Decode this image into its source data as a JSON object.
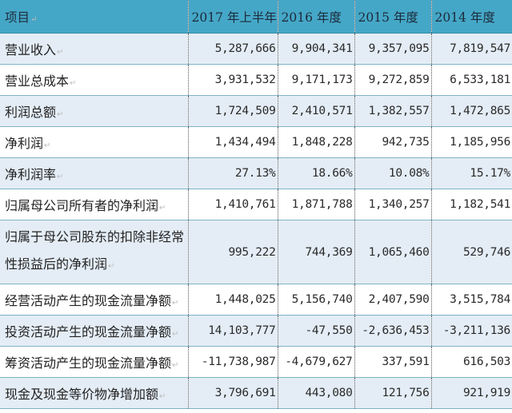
{
  "table": {
    "headers": [
      "项目",
      "2017 年上半年",
      "2016 年度",
      "2015 年度",
      "2014 年度"
    ],
    "colors": {
      "header_bg": "#45a7c7",
      "row_alt_bg": "#e4edf6",
      "row_bg": "#ffffff"
    },
    "rows": [
      {
        "label": "营业收入",
        "values": [
          "5,287,666",
          "9,904,341",
          "9,357,095",
          "7,819,547"
        ]
      },
      {
        "label": "营业总成本",
        "values": [
          "3,931,532",
          "9,171,173",
          "9,272,859",
          "6,533,181"
        ]
      },
      {
        "label": "利润总额",
        "values": [
          "1,724,509",
          "2,410,571",
          "1,382,557",
          "1,472,865"
        ]
      },
      {
        "label": "净利润",
        "values": [
          "1,434,494",
          "1,848,228",
          "942,735",
          "1,185,956"
        ]
      },
      {
        "label": "净利润率",
        "values": [
          "27.13%",
          "18.66%",
          "10.08%",
          "15.17%"
        ]
      },
      {
        "label": "归属母公司所有者的净利润",
        "values": [
          "1,410,761",
          "1,871,788",
          "1,340,257",
          "1,182,541"
        ]
      },
      {
        "label": "归属于母公司股东的扣除非经常性损益后的净利润",
        "values": [
          "995,222",
          "744,369",
          "1,065,460",
          "529,746"
        ]
      },
      {
        "label": "经营活动产生的现金流量净额",
        "values": [
          "1,448,025",
          "5,156,740",
          "2,407,590",
          "3,515,784"
        ]
      },
      {
        "label": "投资活动产生的现金流量净额",
        "values": [
          "14,103,777",
          "-47,550",
          "-2,636,453",
          "-3,211,136"
        ]
      },
      {
        "label": "筹资活动产生的现金流量净额",
        "values": [
          "-11,738,987",
          "-4,679,627",
          "337,591",
          "616,503"
        ]
      },
      {
        "label": "现金及现金等价物净增加额",
        "values": [
          "3,796,691",
          "443,080",
          "121,756",
          "921,919"
        ]
      }
    ],
    "return_mark": "↵"
  }
}
